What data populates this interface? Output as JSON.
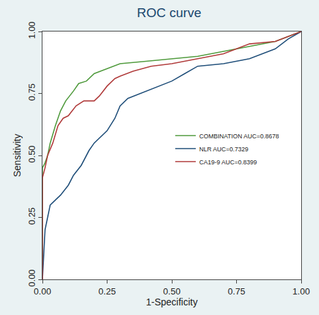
{
  "chart_data": {
    "type": "line",
    "title": "ROC curve",
    "x_label": "1-Specificity",
    "y_label": "Sensitivity",
    "xlim": [
      0,
      1
    ],
    "ylim": [
      0,
      1
    ],
    "xticks": [
      {
        "value": 0,
        "label": "0.00"
      },
      {
        "value": 0.25,
        "label": "0.25"
      },
      {
        "value": 0.5,
        "label": "0.50"
      },
      {
        "value": 0.75,
        "label": "0.75"
      },
      {
        "value": 1,
        "label": "1.00"
      }
    ],
    "yticks": [
      {
        "value": 0,
        "label": "0.00"
      },
      {
        "value": 0.25,
        "label": "0.25"
      },
      {
        "value": 0.5,
        "label": "0.50"
      },
      {
        "value": 0.75,
        "label": "0.75"
      },
      {
        "value": 1,
        "label": "1.00"
      }
    ],
    "grid": false,
    "legend": "right",
    "series": [
      {
        "name": "COMBINATION AUC=0.8678",
        "color": "#4f9a3c",
        "x": [
          0,
          0,
          0.01,
          0.02,
          0.03,
          0.05,
          0.07,
          0.09,
          0.12,
          0.14,
          0.17,
          0.2,
          0.25,
          0.3,
          0.4,
          0.5,
          0.6,
          0.7,
          0.8,
          0.9,
          0.95,
          1
        ],
        "values": [
          0,
          0.45,
          0.47,
          0.5,
          0.55,
          0.62,
          0.68,
          0.72,
          0.76,
          0.79,
          0.8,
          0.83,
          0.85,
          0.87,
          0.88,
          0.89,
          0.9,
          0.92,
          0.94,
          0.96,
          0.98,
          1
        ]
      },
      {
        "name": "NLR AUC=0.7329",
        "color": "#1f4e79",
        "x": [
          0,
          0.005,
          0.01,
          0.02,
          0.03,
          0.05,
          0.07,
          0.1,
          0.12,
          0.15,
          0.18,
          0.2,
          0.25,
          0.28,
          0.3,
          0.33,
          0.38,
          0.45,
          0.5,
          0.55,
          0.6,
          0.7,
          0.8,
          0.9,
          0.95,
          1
        ],
        "values": [
          0,
          0.1,
          0.2,
          0.25,
          0.3,
          0.32,
          0.34,
          0.38,
          0.42,
          0.46,
          0.52,
          0.55,
          0.6,
          0.65,
          0.7,
          0.73,
          0.75,
          0.78,
          0.8,
          0.83,
          0.86,
          0.87,
          0.89,
          0.93,
          0.97,
          1
        ]
      },
      {
        "name": "CA19-9 AUC=0.8399",
        "color": "#b03a3a",
        "x": [
          0,
          0,
          0.01,
          0.02,
          0.04,
          0.06,
          0.08,
          0.1,
          0.13,
          0.16,
          0.2,
          0.22,
          0.25,
          0.28,
          0.3,
          0.35,
          0.42,
          0.5,
          0.6,
          0.7,
          0.8,
          0.9,
          0.95,
          1
        ],
        "values": [
          0,
          0.41,
          0.45,
          0.5,
          0.55,
          0.62,
          0.65,
          0.66,
          0.7,
          0.72,
          0.72,
          0.74,
          0.78,
          0.81,
          0.82,
          0.84,
          0.86,
          0.87,
          0.89,
          0.91,
          0.95,
          0.96,
          0.98,
          1
        ]
      }
    ]
  }
}
